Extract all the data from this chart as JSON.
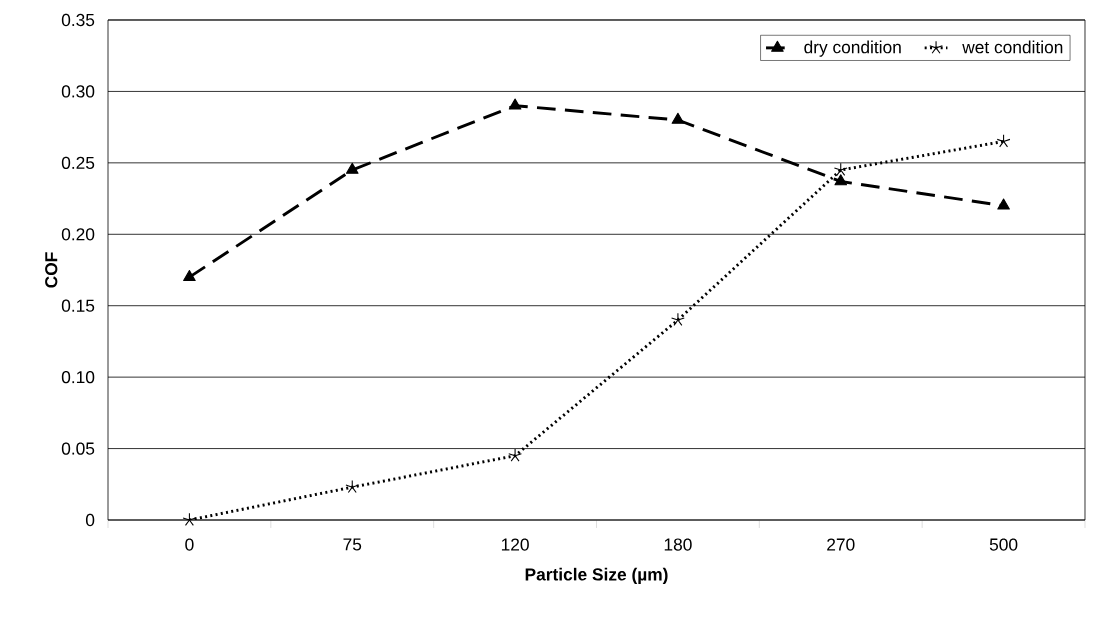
{
  "chart_data": {
    "type": "line",
    "xlabel": "Particle Size (µm)",
    "ylabel": "COF",
    "categories": [
      "0",
      "75",
      "120",
      "180",
      "270",
      "500"
    ],
    "series": [
      {
        "name": "dry condition",
        "color": "#000000",
        "marker": "triangle",
        "line_style": "dashed",
        "values": [
          0.17,
          0.245,
          0.29,
          0.28,
          0.237,
          0.22
        ]
      },
      {
        "name": "wet condition",
        "color": "#000000",
        "marker": "cross",
        "line_style": "dotted",
        "values": [
          0,
          0.023,
          0.045,
          0.14,
          0.245,
          0.265
        ]
      }
    ],
    "ylim": [
      0,
      0.35
    ],
    "yticks": [
      0,
      0.05,
      {
        "value": 0.1,
        "label": "0.10"
      },
      0.15,
      {
        "value": 0.2,
        "label": "0.20"
      },
      0.25,
      {
        "value": 0.3,
        "label": "0.30"
      },
      0.35
    ],
    "grid": "y",
    "legend": "top right"
  }
}
